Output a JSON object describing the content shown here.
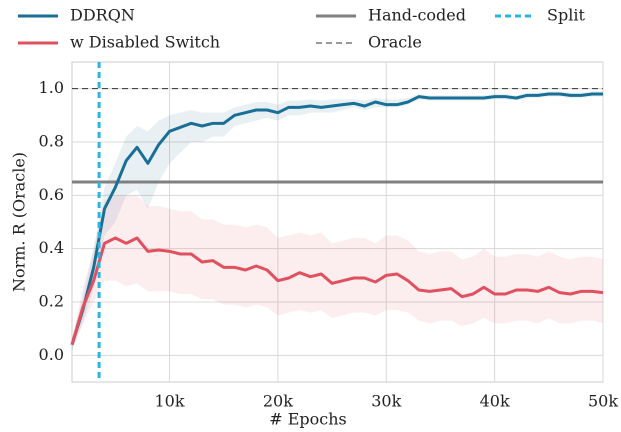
{
  "chart_data": {
    "type": "line",
    "xlabel": "# Epochs",
    "ylabel": "Norm. R (Oracle)",
    "x": [
      1000,
      2000,
      3000,
      4000,
      5000,
      6000,
      7000,
      8000,
      9000,
      10000,
      11000,
      12000,
      13000,
      14000,
      15000,
      16000,
      17000,
      18000,
      19000,
      20000,
      21000,
      22000,
      23000,
      24000,
      25000,
      26000,
      27000,
      28000,
      29000,
      30000,
      31000,
      32000,
      33000,
      34000,
      35000,
      36000,
      37000,
      38000,
      39000,
      40000,
      41000,
      42000,
      43000,
      44000,
      45000,
      46000,
      47000,
      48000,
      49000,
      50000
    ],
    "series": [
      {
        "name": "DDRQN",
        "color": "#1a6f96",
        "values": [
          0.04,
          0.17,
          0.33,
          0.55,
          0.63,
          0.73,
          0.78,
          0.72,
          0.79,
          0.84,
          0.855,
          0.87,
          0.86,
          0.87,
          0.87,
          0.9,
          0.91,
          0.92,
          0.92,
          0.91,
          0.93,
          0.93,
          0.935,
          0.93,
          0.935,
          0.94,
          0.945,
          0.935,
          0.95,
          0.94,
          0.94,
          0.95,
          0.97,
          0.965,
          0.965,
          0.965,
          0.965,
          0.965,
          0.965,
          0.97,
          0.97,
          0.965,
          0.975,
          0.975,
          0.98,
          0.98,
          0.975,
          0.975,
          0.98,
          0.98
        ],
        "lower": [
          0.02,
          0.12,
          0.25,
          0.45,
          0.5,
          0.6,
          0.62,
          0.55,
          0.65,
          0.72,
          0.76,
          0.8,
          0.8,
          0.82,
          0.82,
          0.86,
          0.87,
          0.88,
          0.89,
          0.88,
          0.9,
          0.9,
          0.91,
          0.91,
          0.91,
          0.92,
          0.93,
          0.92,
          0.93,
          0.93,
          0.93,
          0.94,
          0.96,
          0.955,
          0.955,
          0.955,
          0.955,
          0.955,
          0.955,
          0.96,
          0.96,
          0.955,
          0.965,
          0.965,
          0.97,
          0.97,
          0.965,
          0.965,
          0.97,
          0.97
        ],
        "upper": [
          0.06,
          0.22,
          0.4,
          0.63,
          0.72,
          0.82,
          0.86,
          0.84,
          0.88,
          0.9,
          0.91,
          0.92,
          0.91,
          0.91,
          0.91,
          0.93,
          0.94,
          0.95,
          0.95,
          0.94,
          0.955,
          0.955,
          0.96,
          0.955,
          0.96,
          0.96,
          0.96,
          0.955,
          0.965,
          0.96,
          0.96,
          0.965,
          0.98,
          0.975,
          0.975,
          0.975,
          0.975,
          0.975,
          0.975,
          0.98,
          0.98,
          0.975,
          0.985,
          0.985,
          0.99,
          0.99,
          0.985,
          0.985,
          0.99,
          0.99
        ]
      },
      {
        "name": "w Disabled Switch",
        "color": "#e0505f",
        "values": [
          0.04,
          0.18,
          0.28,
          0.42,
          0.44,
          0.42,
          0.44,
          0.39,
          0.395,
          0.39,
          0.38,
          0.38,
          0.35,
          0.355,
          0.33,
          0.33,
          0.32,
          0.335,
          0.32,
          0.28,
          0.29,
          0.31,
          0.295,
          0.305,
          0.27,
          0.28,
          0.29,
          0.29,
          0.275,
          0.3,
          0.305,
          0.28,
          0.245,
          0.24,
          0.245,
          0.25,
          0.22,
          0.23,
          0.255,
          0.23,
          0.23,
          0.245,
          0.245,
          0.24,
          0.255,
          0.235,
          0.23,
          0.24,
          0.24,
          0.235
        ],
        "lower": [
          0.02,
          0.12,
          0.2,
          0.28,
          0.28,
          0.26,
          0.27,
          0.24,
          0.24,
          0.24,
          0.23,
          0.23,
          0.21,
          0.21,
          0.19,
          0.19,
          0.18,
          0.19,
          0.18,
          0.15,
          0.16,
          0.17,
          0.16,
          0.17,
          0.14,
          0.15,
          0.16,
          0.16,
          0.15,
          0.17,
          0.17,
          0.16,
          0.13,
          0.12,
          0.13,
          0.13,
          0.11,
          0.12,
          0.14,
          0.12,
          0.12,
          0.13,
          0.13,
          0.12,
          0.14,
          0.12,
          0.12,
          0.13,
          0.13,
          0.12
        ],
        "upper": [
          0.06,
          0.25,
          0.4,
          0.58,
          0.6,
          0.6,
          0.6,
          0.56,
          0.56,
          0.55,
          0.54,
          0.54,
          0.51,
          0.51,
          0.49,
          0.49,
          0.48,
          0.49,
          0.48,
          0.44,
          0.45,
          0.46,
          0.45,
          0.46,
          0.42,
          0.43,
          0.44,
          0.44,
          0.42,
          0.45,
          0.45,
          0.43,
          0.39,
          0.38,
          0.39,
          0.39,
          0.36,
          0.37,
          0.4,
          0.37,
          0.37,
          0.38,
          0.38,
          0.37,
          0.39,
          0.37,
          0.36,
          0.37,
          0.37,
          0.36
        ]
      }
    ],
    "hlines": [
      {
        "name": "Hand-coded",
        "value": 0.65,
        "color": "#808080",
        "style": "solid"
      },
      {
        "name": "Oracle",
        "value": 1.0,
        "color": "#333333",
        "style": "dashed"
      }
    ],
    "vlines": [
      {
        "name": "Split",
        "value": 3500,
        "color": "#29b5e0",
        "style": "dashed"
      }
    ],
    "xlim": [
      1000,
      50000
    ],
    "ylim": [
      -0.1,
      1.1
    ],
    "xticks": [
      {
        "value": 10000,
        "label": "10k"
      },
      {
        "value": 20000,
        "label": "20k"
      },
      {
        "value": 30000,
        "label": "30k"
      },
      {
        "value": 40000,
        "label": "40k"
      },
      {
        "value": 50000,
        "label": "50k"
      }
    ],
    "yticks": [
      {
        "value": 0,
        "label": "0.0"
      },
      {
        "value": 0.2,
        "label": "0.2"
      },
      {
        "value": 0.4,
        "label": "0.4"
      },
      {
        "value": 0.6,
        "label": "0.6"
      },
      {
        "value": 0.8,
        "label": "0.8"
      },
      {
        "value": 1.0,
        "label": "1.0"
      }
    ],
    "grid": true,
    "legend": "top"
  }
}
